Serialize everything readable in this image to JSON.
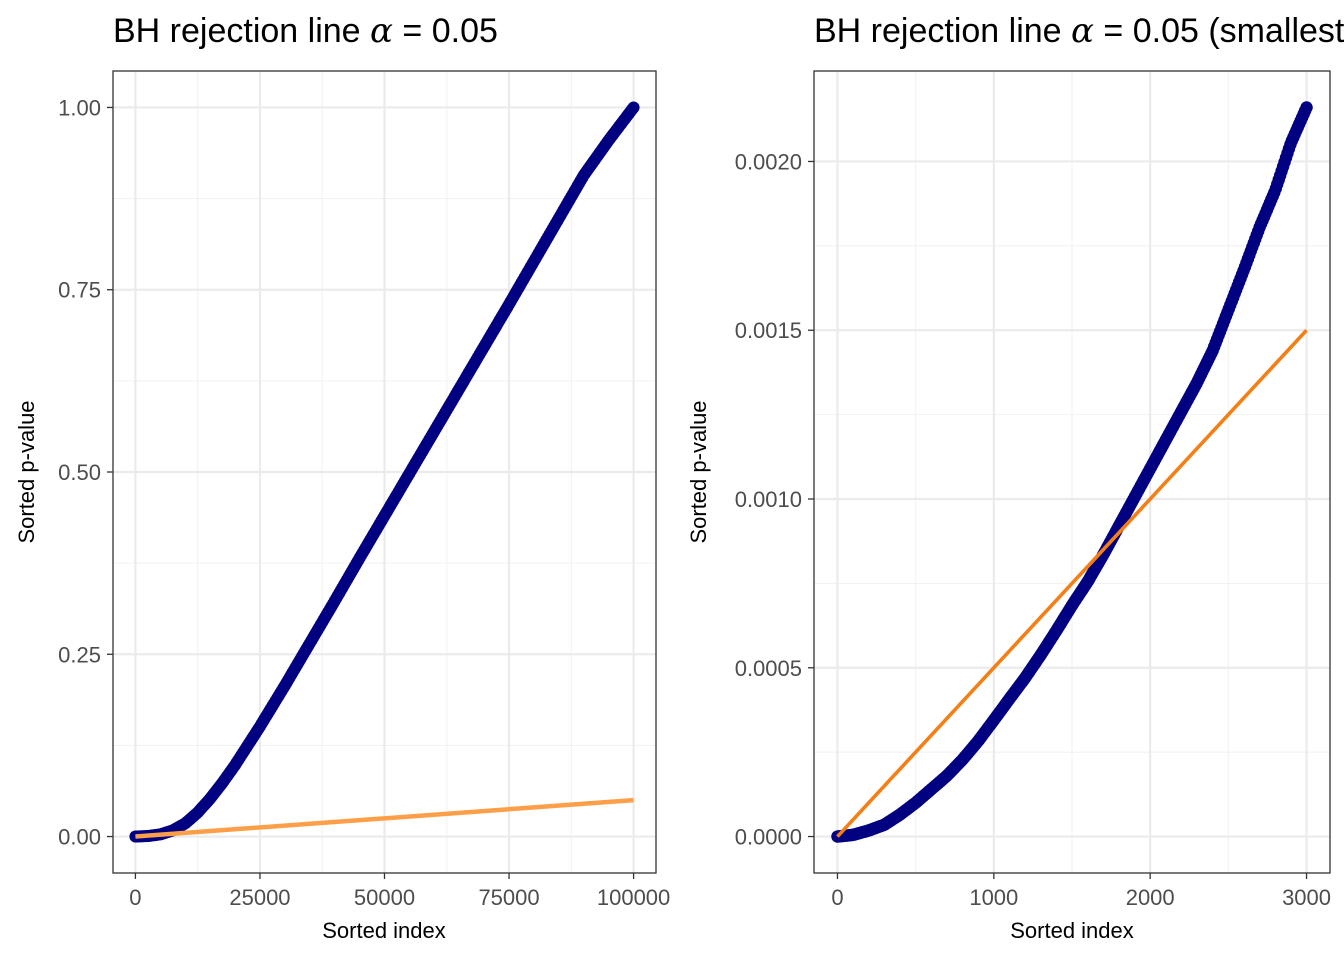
{
  "chart_data": [
    {
      "type": "scatter",
      "title_prefix": "BH rejection line ",
      "title_alpha": "α",
      "title_suffix": " = 0.05",
      "xlabel": "Sorted index",
      "ylabel": "Sorted p-value",
      "xlim": [
        -4500,
        104500
      ],
      "ylim": [
        -0.05,
        1.05
      ],
      "x_ticks": [
        0,
        25000,
        50000,
        75000,
        100000
      ],
      "x_tick_labels": [
        "0",
        "25000",
        "50000",
        "75000",
        "100000"
      ],
      "y_ticks": [
        0,
        0.25,
        0.5,
        0.75,
        1.0
      ],
      "y_tick_labels": [
        "0.00",
        "0.25",
        "0.50",
        "0.75",
        "1.00"
      ],
      "grid": true,
      "series": [
        {
          "kind": "points",
          "color": "#000080",
          "x": [
            0,
            2500,
            5000,
            7500,
            10000,
            12500,
            15000,
            17500,
            20000,
            25000,
            30000,
            35000,
            40000,
            45000,
            50000,
            55000,
            60000,
            65000,
            70000,
            75000,
            80000,
            85000,
            90000,
            95000,
            100000
          ],
          "y": [
            0.0,
            0.0007,
            0.003,
            0.0085,
            0.018,
            0.033,
            0.052,
            0.074,
            0.098,
            0.151,
            0.207,
            0.265,
            0.323,
            0.382,
            0.44,
            0.498,
            0.556,
            0.614,
            0.672,
            0.73,
            0.789,
            0.848,
            0.907,
            0.955,
            1.0
          ]
        },
        {
          "kind": "line",
          "color": "#fc9f48",
          "x": [
            0,
            100000
          ],
          "y": [
            0.0,
            0.05
          ]
        }
      ]
    },
    {
      "type": "scatter",
      "title_prefix": "BH rejection line ",
      "title_alpha": "α",
      "title_suffix": " = 0.05 (smallest",
      "xlabel": "Sorted index",
      "ylabel": "Sorted p-value",
      "xlim": [
        -150,
        3150
      ],
      "ylim": [
        -0.000108,
        0.002268
      ],
      "x_ticks": [
        0,
        1000,
        2000,
        3000
      ],
      "x_tick_labels": [
        "0",
        "1000",
        "2000",
        "3000"
      ],
      "y_ticks": [
        0,
        0.0005,
        0.001,
        0.0015,
        0.002
      ],
      "y_tick_labels": [
        "0.0000",
        "0.0005",
        "0.0010",
        "0.0015",
        "0.0020"
      ],
      "grid": true,
      "series": [
        {
          "kind": "points",
          "color": "#000080",
          "x": [
            0,
            100,
            200,
            300,
            400,
            500,
            600,
            700,
            800,
            900,
            1000,
            1100,
            1200,
            1300,
            1400,
            1500,
            1600,
            1700,
            1800,
            1900,
            2000,
            2100,
            2200,
            2300,
            2400,
            2500,
            2600,
            2700,
            2800,
            2900,
            3000
          ],
          "y": [
            0.0,
            5e-06,
            1.8e-05,
            3.5e-05,
            6.5e-05,
            0.0001,
            0.00014,
            0.00018,
            0.000228,
            0.000283,
            0.000345,
            0.000408,
            0.00047,
            0.000538,
            0.00061,
            0.000685,
            0.000755,
            0.000835,
            0.00092,
            0.001005,
            0.00109,
            0.001175,
            0.00126,
            0.001345,
            0.00144,
            0.00156,
            0.00168,
            0.001805,
            0.001915,
            0.002055,
            0.00216
          ]
        },
        {
          "kind": "line",
          "color": "#f57f17",
          "x": [
            0,
            3000
          ],
          "y": [
            0.0,
            0.0015
          ]
        }
      ]
    }
  ]
}
